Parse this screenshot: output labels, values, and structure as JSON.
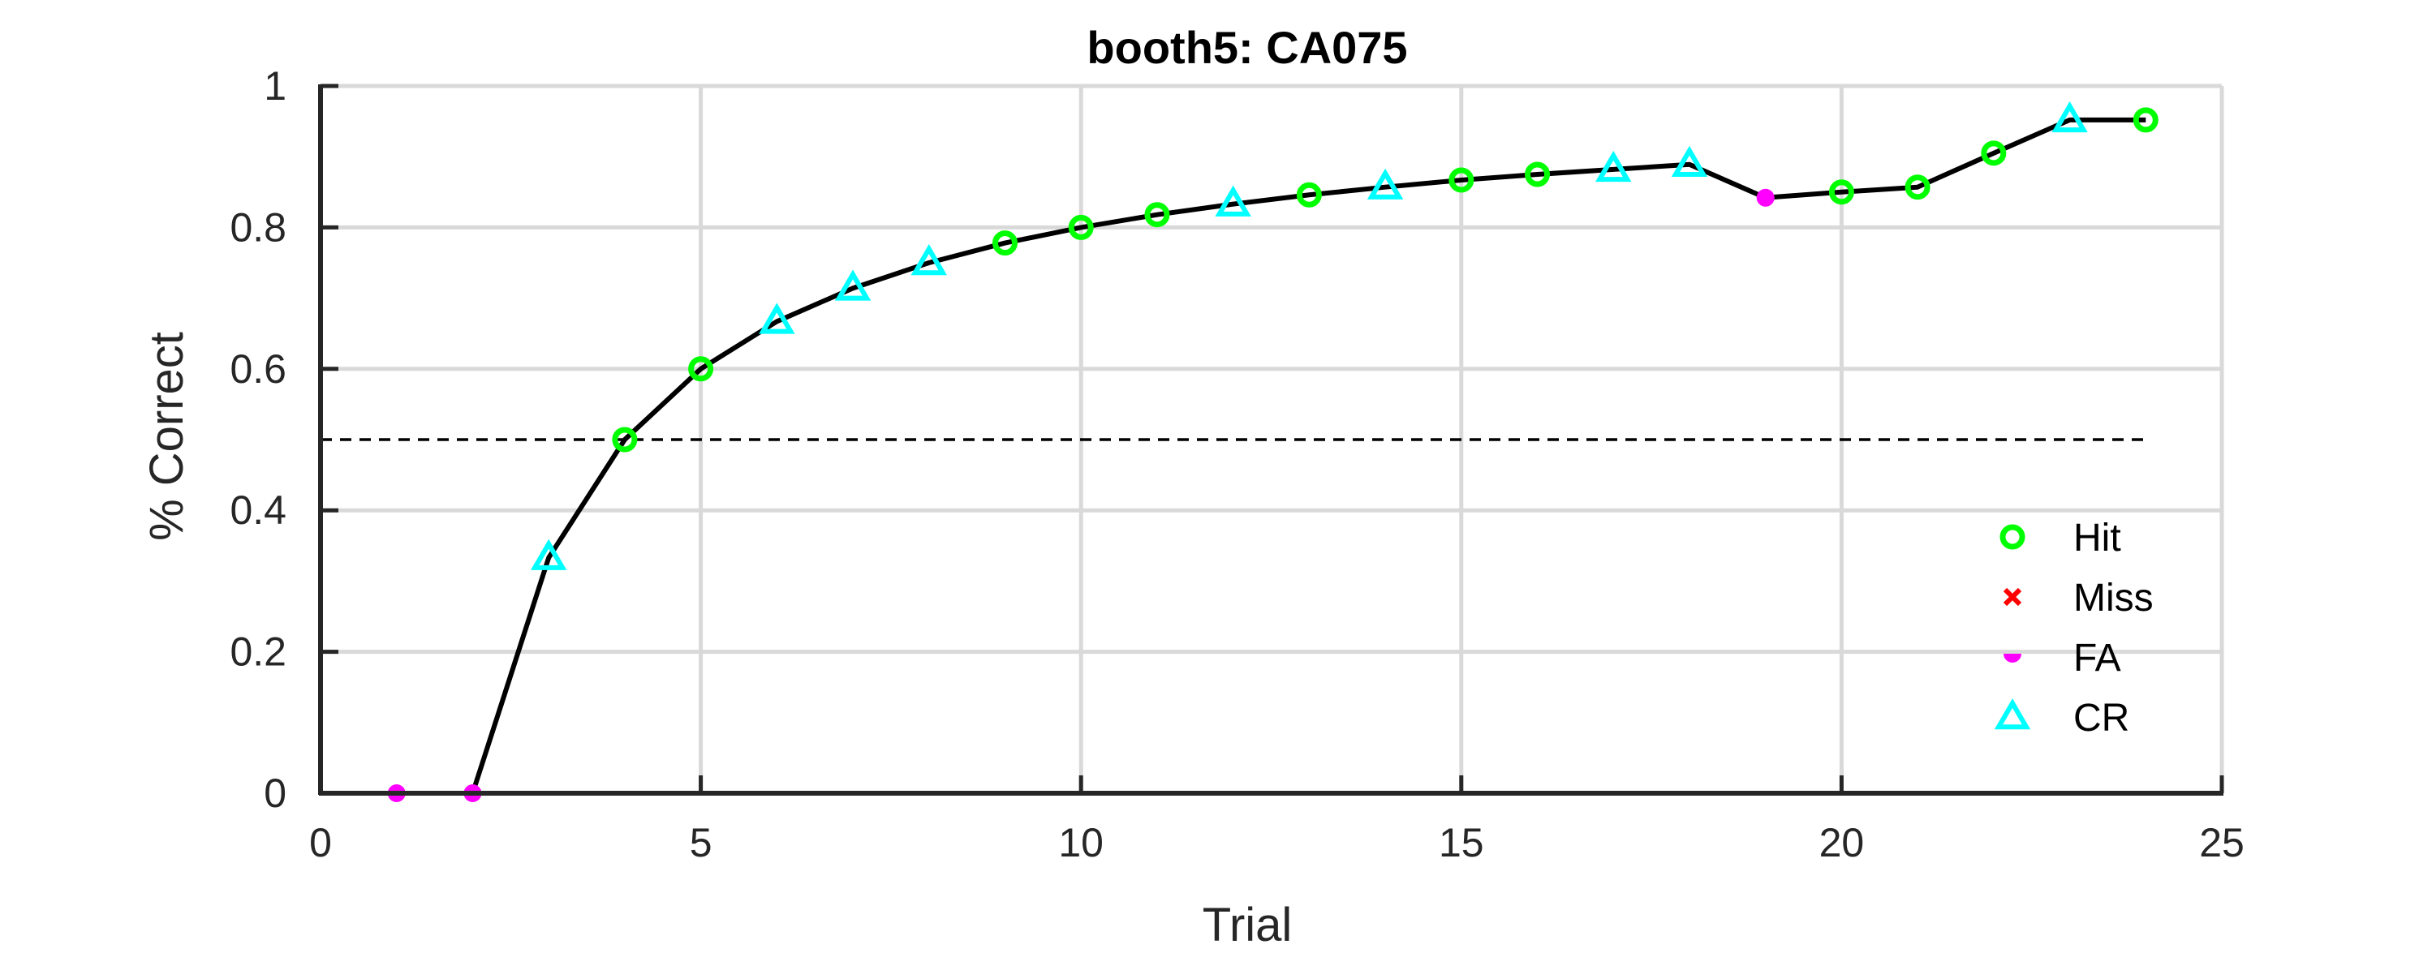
{
  "chart_data": {
    "type": "line",
    "title": "booth5: CA075",
    "xlabel": "Trial",
    "ylabel": "% Correct",
    "xlim": [
      0,
      25
    ],
    "ylim": [
      0,
      1
    ],
    "xticks": [
      0,
      5,
      10,
      15,
      20,
      25
    ],
    "yticks": [
      0,
      0.2,
      0.4,
      0.6,
      0.8,
      1
    ],
    "xtick_labels": [
      "0",
      "5",
      "10",
      "15",
      "20",
      "25"
    ],
    "ytick_labels": [
      "0",
      "0.2",
      "0.4",
      "0.6",
      "0.8",
      "1"
    ],
    "grid": true,
    "reference_line": {
      "y": 0.5,
      "x_range": [
        0,
        24
      ],
      "style": "dashed"
    },
    "x": [
      1,
      2,
      3,
      4,
      5,
      6,
      7,
      8,
      9,
      10,
      11,
      12,
      13,
      14,
      15,
      16,
      17,
      18,
      19,
      20,
      21,
      22,
      23,
      24
    ],
    "y": [
      0,
      0,
      0.333,
      0.5,
      0.6,
      0.667,
      0.714,
      0.75,
      0.778,
      0.8,
      0.818,
      0.833,
      0.846,
      0.857,
      0.867,
      0.875,
      0.882,
      0.889,
      0.842,
      0.85,
      0.857,
      0.905,
      0.952,
      0.952
    ],
    "outcomes": [
      "FA",
      "FA",
      "CR",
      "Hit",
      "Hit",
      "CR",
      "CR",
      "CR",
      "Hit",
      "Hit",
      "Hit",
      "CR",
      "Hit",
      "CR",
      "Hit",
      "Hit",
      "CR",
      "CR",
      "FA",
      "Hit",
      "Hit",
      "Hit",
      "CR",
      "Hit"
    ],
    "legend": {
      "placement": "lower-right",
      "entries": [
        {
          "label": "Hit",
          "marker": "circle-open",
          "color": "#00ff00"
        },
        {
          "label": "Miss",
          "marker": "x",
          "color": "#ff0000"
        },
        {
          "label": "FA",
          "marker": "dot",
          "color": "#ff00ff"
        },
        {
          "label": "CR",
          "marker": "triangle-open",
          "color": "#00ffff"
        }
      ]
    },
    "colors": {
      "line": "#000000",
      "axis": "#262626",
      "grid": "#d9d9d9"
    }
  }
}
